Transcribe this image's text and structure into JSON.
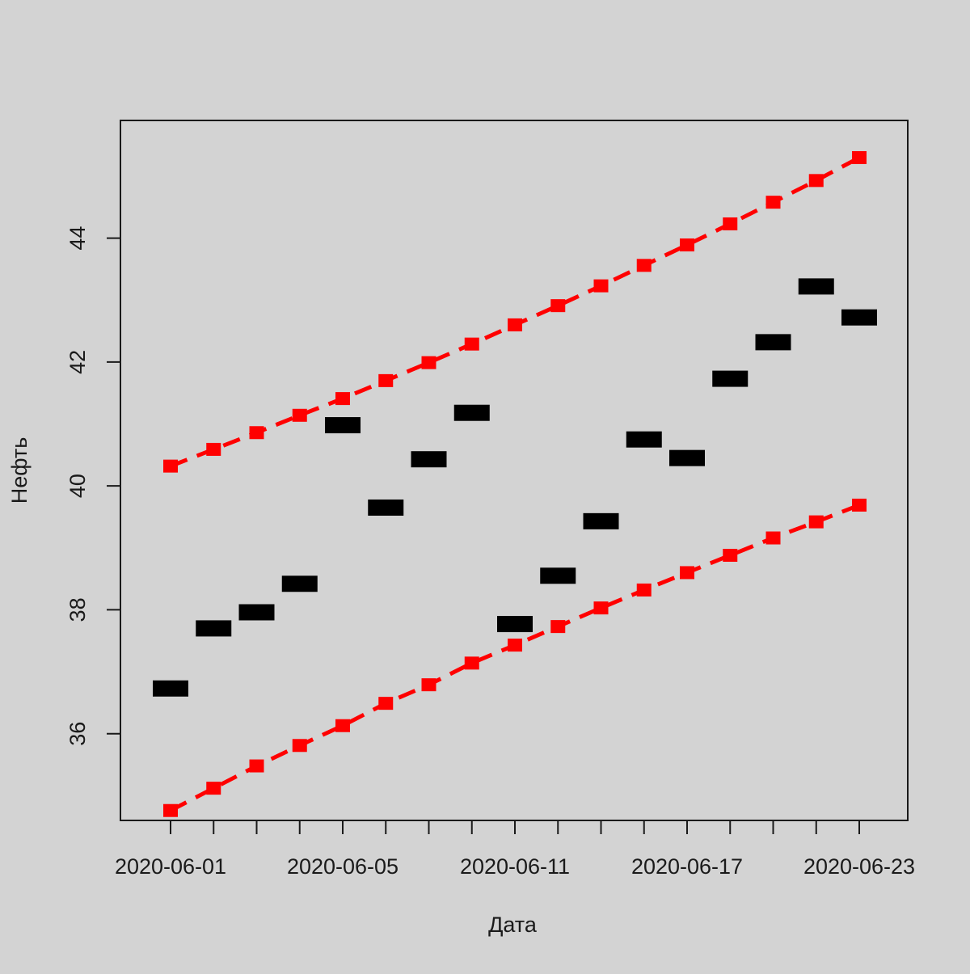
{
  "chart_data": {
    "type": "line",
    "title": "",
    "xlabel": "Дата",
    "ylabel": "Нефть",
    "categories": [
      "2020-06-01",
      "",
      "",
      "",
      "2020-06-05",
      "",
      "",
      "",
      "2020-06-11",
      "",
      "",
      "",
      "2020-06-17",
      "",
      "",
      "",
      "2020-06-23"
    ],
    "ylim": [
      34.6,
      45.9
    ],
    "yticks": [
      36,
      38,
      40,
      42,
      44
    ],
    "ytick_labels": [
      "36",
      "38",
      "40",
      "42",
      "44"
    ],
    "grid": false,
    "legend": false,
    "series": [
      {
        "role": "actual",
        "style": "bars",
        "color": "#000000",
        "values": [
          36.73,
          37.7,
          37.96,
          38.42,
          40.98,
          39.65,
          40.43,
          41.18,
          37.77,
          38.55,
          39.43,
          40.75,
          40.45,
          41.73,
          42.32,
          43.22,
          42.72
        ]
      },
      {
        "role": "upper-bound",
        "style": "dashed-line",
        "color": "#ff0000",
        "values": [
          40.32,
          40.59,
          40.86,
          41.14,
          41.41,
          41.7,
          41.99,
          42.29,
          42.6,
          42.91,
          43.23,
          43.56,
          43.89,
          44.23,
          44.58,
          44.93,
          45.3
        ]
      },
      {
        "role": "lower-bound",
        "style": "dashed-line",
        "color": "#ff0000",
        "values": [
          34.76,
          35.12,
          35.48,
          35.81,
          36.13,
          36.49,
          36.79,
          37.14,
          37.43,
          37.73,
          38.03,
          38.32,
          38.6,
          38.88,
          39.16,
          39.42,
          39.69
        ]
      }
    ]
  }
}
